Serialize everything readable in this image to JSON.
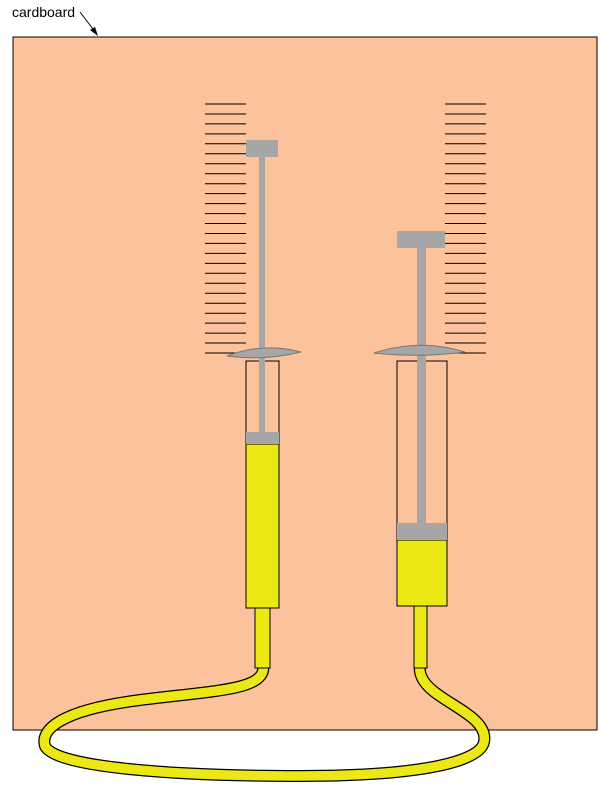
{
  "labels": {
    "cardboard": "cardboard"
  },
  "colors": {
    "cardboard": "#fbc29b",
    "liquid": "#ece814",
    "plunger": "#a6a6a6",
    "outline": "#000000"
  },
  "syringes": [
    {
      "name": "left",
      "liquid_fraction": 0.71,
      "scale_ticks": 26
    },
    {
      "name": "right",
      "liquid_fraction": 0.27,
      "scale_ticks": 26
    }
  ]
}
